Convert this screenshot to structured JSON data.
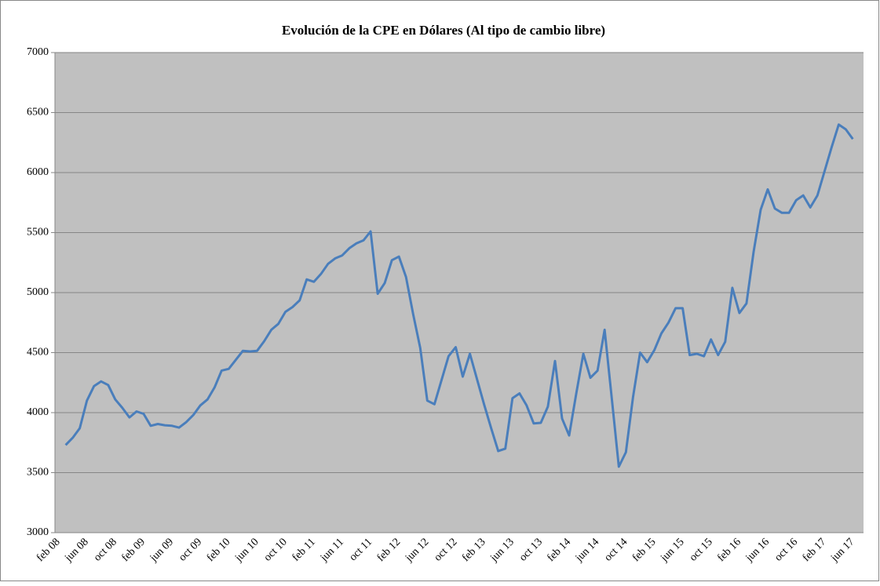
{
  "chart_data": {
    "type": "line",
    "title": "Evolución de la CPE en Dólares (Al tipo de cambio libre)",
    "categories": [
      "feb 08",
      null,
      null,
      null,
      "jun 08",
      null,
      null,
      null,
      "oct 08",
      null,
      null,
      null,
      "feb 09",
      null,
      null,
      null,
      "jun 09",
      null,
      null,
      null,
      "oct 09",
      null,
      null,
      null,
      "feb 10",
      null,
      null,
      null,
      "jun 10",
      null,
      null,
      null,
      "oct 10",
      null,
      null,
      null,
      "feb 11",
      null,
      null,
      null,
      "jun 11",
      null,
      null,
      null,
      "oct 11",
      null,
      null,
      null,
      "feb 12",
      null,
      null,
      null,
      "jun 12",
      null,
      null,
      null,
      "oct 12",
      null,
      null,
      null,
      "feb 13",
      null,
      null,
      null,
      "jun 13",
      null,
      null,
      null,
      "oct 13",
      null,
      null,
      null,
      "feb 14",
      null,
      null,
      null,
      "jun 14",
      null,
      null,
      null,
      "oct 14",
      null,
      null,
      null,
      "feb 15",
      null,
      null,
      null,
      "jun 15",
      null,
      null,
      null,
      "oct 15",
      null,
      null,
      null,
      "feb 16",
      null,
      null,
      null,
      "jun 16",
      null,
      null,
      null,
      "oct 16",
      null,
      null,
      null,
      "feb 17",
      null,
      null,
      null,
      "jun 17",
      null
    ],
    "values": [
      null,
      3730,
      3790,
      3870,
      4100,
      4220,
      4260,
      4230,
      4110,
      4040,
      3960,
      4010,
      3990,
      3890,
      3905,
      3895,
      3890,
      3875,
      3920,
      3980,
      4060,
      4110,
      4210,
      4350,
      4365,
      4440,
      4515,
      4510,
      4515,
      4595,
      4690,
      4740,
      4840,
      4880,
      4935,
      5110,
      5090,
      5155,
      5240,
      5285,
      5310,
      5370,
      5410,
      5435,
      5510,
      4990,
      5080,
      5270,
      5300,
      5130,
      4820,
      4540,
      4100,
      4070,
      4270,
      4470,
      4545,
      4300,
      4490,
      4280,
      4070,
      3870,
      3680,
      3700,
      4120,
      4160,
      4060,
      3910,
      3915,
      4050,
      4430,
      3950,
      3810,
      4160,
      4490,
      4290,
      4350,
      4690,
      4120,
      3550,
      3670,
      4130,
      4500,
      4420,
      4520,
      4660,
      4750,
      4870,
      4870,
      4480,
      4490,
      4470,
      4610,
      4480,
      4590,
      5040,
      4830,
      4910,
      5340,
      5690,
      5860,
      5700,
      5665,
      5665,
      5770,
      5810,
      5710,
      5810,
      6010,
      6210,
      6400,
      6360,
      6280,
      null
    ],
    "color": "#4a7ebb",
    "ylim": [
      3000,
      7000
    ],
    "yticks": [
      3000,
      3500,
      4000,
      4500,
      5000,
      5500,
      6000,
      6500,
      7000
    ],
    "grid": true
  }
}
